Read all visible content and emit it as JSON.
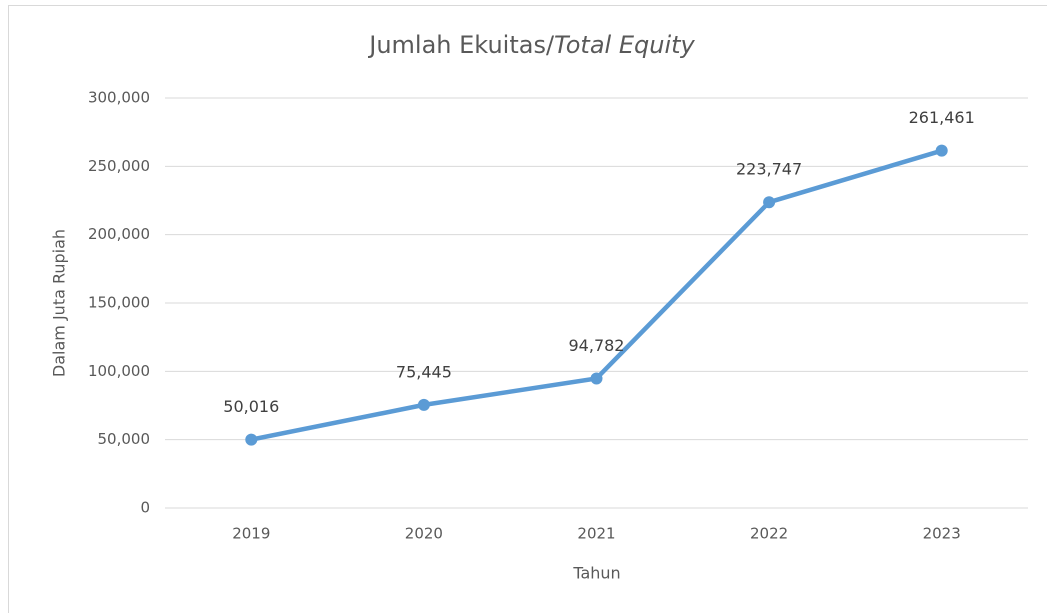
{
  "chart_data": {
    "type": "line",
    "title": [
      "Jumlah Ekuitas/",
      "Total Equity"
    ],
    "x_label": "Tahun",
    "y_label": "Dalam Juta Rupiah",
    "categories": [
      "2019",
      "2020",
      "2021",
      "2022",
      "2023"
    ],
    "series": [
      {
        "name": "Jumlah Ekuitas",
        "color": "#5b9bd5",
        "values": [
          50016,
          75445,
          94782,
          223747,
          261461
        ],
        "value_labels": [
          "50,016",
          "75,445",
          "94,782",
          "223,747",
          "261,461"
        ]
      }
    ],
    "ylim": [
      0,
      300000
    ],
    "yticks": [
      0,
      {
        "value": 50000,
        "label": "50,000"
      },
      {
        "value": 100000,
        "label": "100,000"
      },
      {
        "value": 150000,
        "label": "150,000"
      },
      {
        "value": 200000,
        "label": "200,000"
      },
      {
        "value": 250000,
        "label": "250,000"
      },
      {
        "value": 300000,
        "label": "300,000"
      }
    ],
    "grid": true
  }
}
